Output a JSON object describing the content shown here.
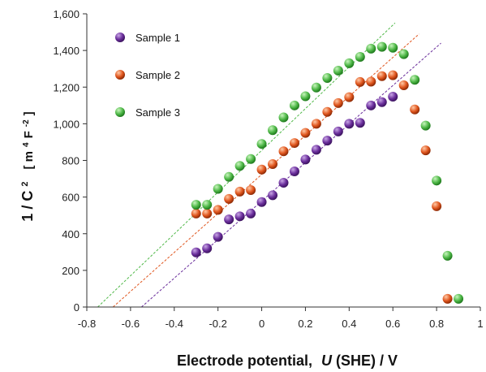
{
  "chart_data": {
    "type": "scatter",
    "xlabel": "Electrode potential,",
    "xlabel_var": "U",
    "xlabel_tail": " (SHE) / V",
    "ylabel": "1 / C",
    "ylabel_sup": "2",
    "ylabel_units": "[ m",
    "ylabel_units_sup1": "4",
    "ylabel_units_mid": " F",
    "ylabel_units_sup2": "-2",
    "ylabel_units_end": " ]",
    "xlim": [
      -0.8,
      1.0
    ],
    "ylim": [
      0,
      1600
    ],
    "x_ticks": [
      -0.8,
      -0.6,
      -0.4,
      -0.2,
      0,
      0.2,
      0.4,
      0.6,
      0.8,
      1.0
    ],
    "x_tick_labels": [
      "-0.8",
      "-0.6",
      "-0.4",
      "-0.2",
      "0",
      "0.2",
      "0.4",
      "0.6",
      "0.8",
      "1"
    ],
    "y_ticks": [
      0,
      200,
      400,
      600,
      800,
      1000,
      1200,
      1400,
      1600
    ],
    "y_tick_labels": [
      "0",
      "200",
      "400",
      "600",
      "800",
      "1,000",
      "1,200",
      "1,400",
      "1,600"
    ],
    "grid": false,
    "legend_position": "top-left",
    "series": [
      {
        "name": "Sample 1",
        "color": "#6a2e9b",
        "points": [
          [
            -0.3,
            298
          ],
          [
            -0.25,
            320
          ],
          [
            -0.2,
            383
          ],
          [
            -0.15,
            478
          ],
          [
            -0.1,
            495
          ],
          [
            -0.05,
            510
          ],
          [
            0.0,
            573
          ],
          [
            0.05,
            610
          ],
          [
            0.1,
            678
          ],
          [
            0.15,
            740
          ],
          [
            0.2,
            805
          ],
          [
            0.25,
            858
          ],
          [
            0.3,
            908
          ],
          [
            0.35,
            958
          ],
          [
            0.4,
            1000
          ],
          [
            0.45,
            1005
          ],
          [
            0.5,
            1100
          ],
          [
            0.55,
            1118
          ],
          [
            0.6,
            1148
          ]
        ],
        "fit": [
          [
            -0.55,
            0
          ],
          [
            0.82,
            1440
          ]
        ]
      },
      {
        "name": "Sample 2",
        "color": "#e0561e",
        "points": [
          [
            -0.3,
            510
          ],
          [
            -0.25,
            510
          ],
          [
            -0.2,
            530
          ],
          [
            -0.15,
            590
          ],
          [
            -0.1,
            630
          ],
          [
            -0.05,
            638
          ],
          [
            0.0,
            750
          ],
          [
            0.05,
            780
          ],
          [
            0.1,
            850
          ],
          [
            0.15,
            895
          ],
          [
            0.2,
            950
          ],
          [
            0.25,
            1000
          ],
          [
            0.3,
            1065
          ],
          [
            0.35,
            1113
          ],
          [
            0.4,
            1145
          ],
          [
            0.45,
            1228
          ],
          [
            0.5,
            1230
          ],
          [
            0.55,
            1260
          ],
          [
            0.6,
            1265
          ],
          [
            0.65,
            1210
          ],
          [
            0.7,
            1078
          ],
          [
            0.75,
            855
          ],
          [
            0.8,
            550
          ],
          [
            0.85,
            45
          ]
        ],
        "fit": [
          [
            -0.68,
            0
          ],
          [
            0.72,
            1490
          ]
        ]
      },
      {
        "name": "Sample 3",
        "color": "#4fb848",
        "points": [
          [
            -0.3,
            558
          ],
          [
            -0.25,
            558
          ],
          [
            -0.2,
            645
          ],
          [
            -0.15,
            710
          ],
          [
            -0.1,
            770
          ],
          [
            -0.05,
            808
          ],
          [
            0.0,
            890
          ],
          [
            0.05,
            965
          ],
          [
            0.1,
            1035
          ],
          [
            0.15,
            1100
          ],
          [
            0.2,
            1150
          ],
          [
            0.25,
            1198
          ],
          [
            0.3,
            1250
          ],
          [
            0.35,
            1290
          ],
          [
            0.4,
            1330
          ],
          [
            0.45,
            1365
          ],
          [
            0.5,
            1410
          ],
          [
            0.55,
            1420
          ],
          [
            0.6,
            1415
          ],
          [
            0.65,
            1380
          ],
          [
            0.7,
            1240
          ],
          [
            0.75,
            990
          ],
          [
            0.8,
            690
          ],
          [
            0.85,
            280
          ],
          [
            0.9,
            45
          ]
        ],
        "fit": [
          [
            -0.75,
            0
          ],
          [
            0.61,
            1550
          ]
        ]
      }
    ]
  }
}
